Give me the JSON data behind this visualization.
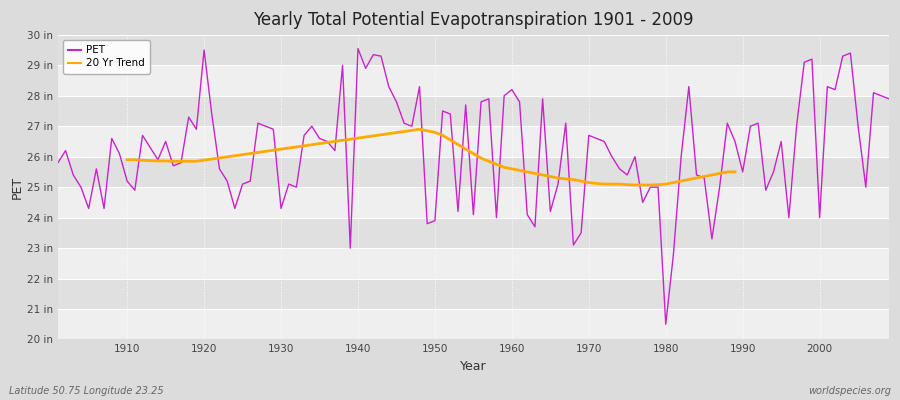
{
  "title": "Yearly Total Potential Evapotranspiration 1901 - 2009",
  "xlabel": "Year",
  "ylabel": "PET",
  "footnote_left": "Latitude 50.75 Longitude 23.25",
  "footnote_right": "worldspecies.org",
  "fig_bg_color": "#dcdcdc",
  "plot_bg_color": "#e0e0e0",
  "pet_color": "#cc22cc",
  "trend_color": "#ffaa00",
  "ylim": [
    20,
    30
  ],
  "xlim": [
    1901,
    2009
  ],
  "yticks": [
    20,
    21,
    22,
    23,
    24,
    25,
    26,
    27,
    28,
    29,
    30
  ],
  "ytick_labels": [
    "20 in",
    "21 in",
    "22 in",
    "23 in",
    "24 in",
    "25 in",
    "26 in",
    "27 in",
    "28 in",
    "29 in",
    "30 in"
  ],
  "xticks": [
    1910,
    1920,
    1930,
    1940,
    1950,
    1960,
    1970,
    1980,
    1990,
    2000
  ],
  "years": [
    1901,
    1902,
    1903,
    1904,
    1905,
    1906,
    1907,
    1908,
    1909,
    1910,
    1911,
    1912,
    1913,
    1914,
    1915,
    1916,
    1917,
    1918,
    1919,
    1920,
    1921,
    1922,
    1923,
    1924,
    1925,
    1926,
    1927,
    1928,
    1929,
    1930,
    1931,
    1932,
    1933,
    1934,
    1935,
    1936,
    1937,
    1938,
    1939,
    1940,
    1941,
    1942,
    1943,
    1944,
    1945,
    1946,
    1947,
    1948,
    1949,
    1950,
    1951,
    1952,
    1953,
    1954,
    1955,
    1956,
    1957,
    1958,
    1959,
    1960,
    1961,
    1962,
    1963,
    1964,
    1965,
    1966,
    1967,
    1968,
    1969,
    1970,
    1971,
    1972,
    1973,
    1974,
    1975,
    1976,
    1977,
    1978,
    1979,
    1980,
    1981,
    1982,
    1983,
    1984,
    1985,
    1986,
    1987,
    1988,
    1989,
    1990,
    1991,
    1992,
    1993,
    1994,
    1995,
    1996,
    1997,
    1998,
    1999,
    2000,
    2001,
    2002,
    2003,
    2004,
    2005,
    2006,
    2007,
    2008,
    2009
  ],
  "pet_values": [
    25.8,
    26.2,
    25.4,
    25.0,
    24.3,
    25.6,
    24.3,
    26.6,
    26.1,
    25.2,
    24.9,
    26.7,
    26.3,
    25.9,
    26.5,
    25.7,
    25.8,
    27.3,
    26.9,
    29.5,
    27.4,
    25.6,
    25.2,
    24.3,
    25.1,
    25.2,
    27.1,
    27.0,
    26.9,
    24.3,
    25.1,
    25.0,
    26.7,
    27.0,
    26.6,
    26.5,
    26.2,
    29.0,
    23.0,
    29.55,
    28.9,
    29.35,
    29.3,
    28.3,
    27.8,
    27.1,
    27.0,
    28.3,
    23.8,
    23.9,
    27.5,
    27.4,
    24.2,
    27.7,
    24.1,
    27.8,
    27.9,
    24.0,
    28.0,
    28.2,
    27.8,
    24.1,
    23.7,
    27.9,
    24.2,
    25.1,
    27.1,
    23.1,
    23.5,
    26.7,
    26.6,
    26.5,
    26.0,
    25.6,
    25.4,
    26.0,
    24.5,
    25.0,
    25.0,
    20.5,
    22.8,
    26.0,
    28.3,
    25.4,
    25.3,
    23.3,
    25.0,
    27.1,
    26.5,
    25.5,
    27.0,
    27.1,
    24.9,
    25.5,
    26.5,
    24.0,
    27.0,
    29.1,
    29.2,
    24.0,
    28.3,
    28.2,
    29.3,
    29.4,
    27.0,
    25.0,
    28.1,
    28.0,
    27.9
  ],
  "trend_years": [
    1910,
    1911,
    1912,
    1913,
    1914,
    1915,
    1916,
    1917,
    1918,
    1919,
    1948,
    1949,
    1950,
    1951,
    1952,
    1953,
    1954,
    1955,
    1956,
    1957,
    1958,
    1959,
    1960,
    1961,
    1962,
    1963,
    1964,
    1965,
    1966,
    1967,
    1968,
    1969,
    1970,
    1971,
    1972,
    1973,
    1974,
    1975,
    1976,
    1977,
    1978,
    1979,
    1980,
    1981,
    1982,
    1983,
    1984,
    1985,
    1986,
    1987,
    1988,
    1989
  ],
  "trend_values": [
    25.9,
    25.9,
    25.88,
    25.87,
    25.86,
    25.86,
    25.85,
    25.85,
    25.85,
    25.85,
    26.9,
    26.85,
    26.8,
    26.7,
    26.55,
    26.4,
    26.25,
    26.1,
    25.95,
    25.85,
    25.75,
    25.65,
    25.6,
    25.55,
    25.5,
    25.45,
    25.4,
    25.35,
    25.3,
    25.27,
    25.25,
    25.2,
    25.15,
    25.12,
    25.1,
    25.1,
    25.1,
    25.08,
    25.07,
    25.07,
    25.07,
    25.08,
    25.1,
    25.15,
    25.2,
    25.25,
    25.3,
    25.35,
    25.4,
    25.45,
    25.5,
    25.5
  ]
}
